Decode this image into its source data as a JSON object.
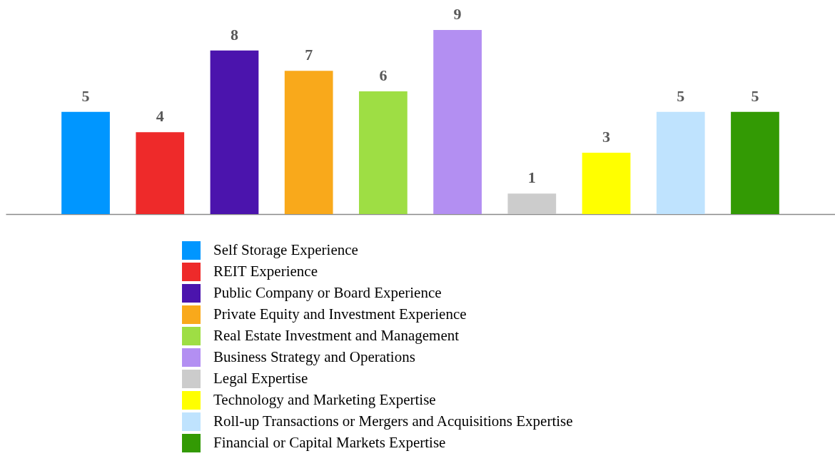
{
  "chart_data": {
    "type": "bar",
    "categories": [
      null,
      null,
      null,
      null,
      null,
      null,
      null,
      null,
      null,
      null
    ],
    "series": [
      {
        "name": "Self Storage Experience",
        "color": "#0096ff",
        "values": [
          5,
          null,
          null,
          null,
          null,
          null,
          null,
          null,
          null,
          null
        ]
      },
      {
        "name": "REIT Experience",
        "color": "#ee2a2a",
        "values": [
          null,
          4,
          null,
          null,
          null,
          null,
          null,
          null,
          null,
          null
        ]
      },
      {
        "name": "Public Company or Board Experience",
        "color": "#4b14ad",
        "values": [
          null,
          null,
          8,
          null,
          null,
          null,
          null,
          null,
          null,
          null
        ]
      },
      {
        "name": "Private Equity and Investment Experience",
        "color": "#f9a91b",
        "values": [
          null,
          null,
          null,
          7,
          null,
          null,
          null,
          null,
          null,
          null
        ]
      },
      {
        "name": "Real Estate Investment and Management",
        "color": "#9ede44",
        "values": [
          null,
          null,
          null,
          null,
          6,
          null,
          null,
          null,
          null,
          null
        ]
      },
      {
        "name": "Business Strategy and Operations",
        "color": "#b38ff2",
        "values": [
          null,
          null,
          null,
          null,
          null,
          9,
          null,
          null,
          null,
          null
        ]
      },
      {
        "name": "Legal Expertise",
        "color": "#cccccc",
        "values": [
          null,
          null,
          null,
          null,
          null,
          null,
          1,
          null,
          null,
          null
        ]
      },
      {
        "name": "Technology and Marketing Expertise",
        "color": "#ffff00",
        "values": [
          null,
          null,
          null,
          null,
          null,
          null,
          null,
          3,
          null,
          null
        ]
      },
      {
        "name": "Roll-up Transactions or Mergers and Acquisitions Expertise",
        "color": "#bfe3fe",
        "values": [
          null,
          null,
          null,
          null,
          null,
          null,
          null,
          null,
          5,
          null
        ]
      },
      {
        "name": "Financial or Capital Markets Expertise",
        "color": "#339a04",
        "values": [
          null,
          null,
          null,
          null,
          null,
          null,
          null,
          null,
          null,
          5
        ]
      }
    ],
    "stacked": true,
    "data_labels": true,
    "legend": "bottom",
    "grid": false
  }
}
